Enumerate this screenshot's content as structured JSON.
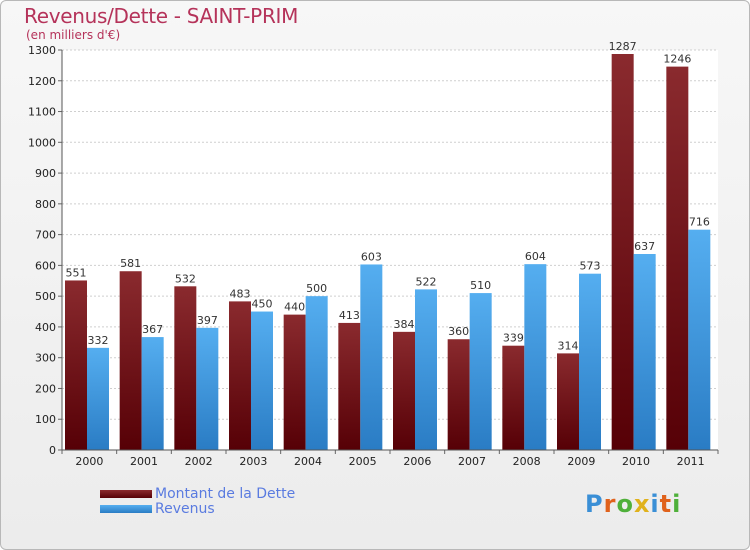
{
  "chart_data": {
    "type": "bar",
    "title": "Revenus/Dette - SAINT-PRIM",
    "subtitle": "(en milliers d'€)",
    "categories": [
      "2000",
      "2001",
      "2002",
      "2003",
      "2004",
      "2005",
      "2006",
      "2007",
      "2008",
      "2009",
      "2010",
      "2011"
    ],
    "series": [
      {
        "name": "Montant de la Dette",
        "values": [
          551,
          581,
          532,
          483,
          440,
          413,
          384,
          360,
          339,
          314,
          1287,
          1246
        ],
        "color": "#7a1c20"
      },
      {
        "name": "Revenus",
        "values": [
          332,
          367,
          397,
          450,
          500,
          603,
          522,
          510,
          604,
          573,
          637,
          716
        ],
        "color": "#4aa3e8"
      }
    ],
    "ylim": [
      0,
      1300
    ],
    "yticks": [
      0,
      100,
      200,
      300,
      400,
      500,
      600,
      700,
      800,
      900,
      1000,
      1100,
      1200,
      1300
    ],
    "grid": true,
    "legend": "bottom-left"
  },
  "logo": {
    "text": "Proxiti"
  }
}
